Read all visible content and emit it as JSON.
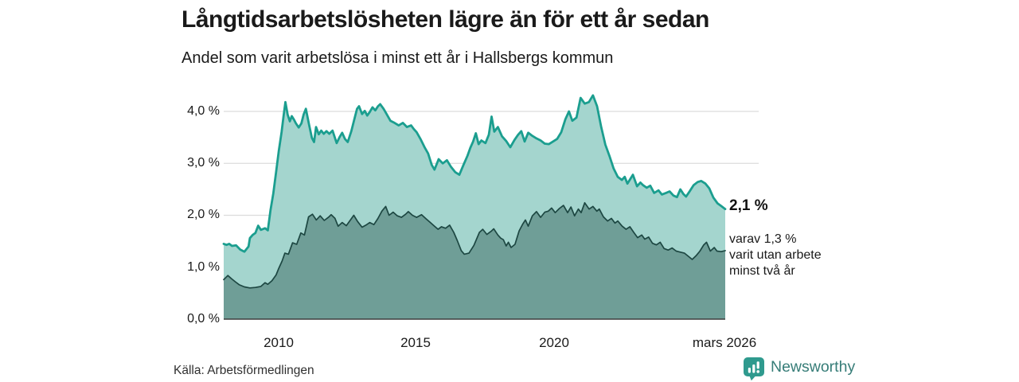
{
  "chart_data": {
    "type": "area",
    "title": "Långtidsarbetslösheten lägre än för ett år sedan",
    "subtitle": "Andel som varit arbetslösa i minst ett år i Hallsbergs kommun",
    "x_domain": [
      2008,
      2026.2
    ],
    "ylim": [
      0,
      4.45
    ],
    "grid": true,
    "legend": false,
    "yticks": [
      0,
      1,
      2,
      3,
      4
    ],
    "ytick_labels": [
      "0,0 %",
      "1,0 %",
      "2,0 %",
      "3,0 %",
      "4,0 %"
    ],
    "xticks": [
      2010,
      2015,
      2020,
      2026.2
    ],
    "xtick_labels": [
      "2010",
      "2015",
      "2020",
      "mars 2026"
    ],
    "colors": {
      "grid": "#dcdcdc",
      "axis": "#3d3d3d"
    },
    "series": [
      {
        "id": "unemployed-at-least-one-year",
        "line_color": "#1b9e8f",
        "fill_color": "#a4d5ce",
        "line_width": 2.8,
        "x": [
          2008.0,
          2008.1,
          2008.2,
          2008.3,
          2008.45,
          2008.6,
          2008.75,
          2008.9,
          2008.95,
          2009.05,
          2009.15,
          2009.25,
          2009.35,
          2009.5,
          2009.6,
          2009.7,
          2009.8,
          2009.9,
          2010.0,
          2010.1,
          2010.17,
          2010.24,
          2010.32,
          2010.4,
          2010.47,
          2010.55,
          2010.62,
          2010.72,
          2010.82,
          2010.9,
          2010.98,
          2011.1,
          2011.2,
          2011.28,
          2011.35,
          2011.45,
          2011.54,
          2011.63,
          2011.73,
          2011.83,
          2011.95,
          2012.1,
          2012.2,
          2012.3,
          2012.4,
          2012.5,
          2012.63,
          2012.77,
          2012.84,
          2012.91,
          2013.02,
          2013.12,
          2013.21,
          2013.3,
          2013.4,
          2013.5,
          2013.6,
          2013.68,
          2013.8,
          2013.9,
          2014.05,
          2014.2,
          2014.35,
          2014.5,
          2014.65,
          2014.8,
          2014.9,
          2015.0,
          2015.15,
          2015.3,
          2015.42,
          2015.55,
          2015.65,
          2015.8,
          2015.95,
          2016.1,
          2016.25,
          2016.4,
          2016.55,
          2016.7,
          2016.85,
          2016.95,
          2017.05,
          2017.15,
          2017.25,
          2017.35,
          2017.5,
          2017.62,
          2017.72,
          2017.82,
          2017.95,
          2018.1,
          2018.25,
          2018.4,
          2018.55,
          2018.68,
          2018.8,
          2018.92,
          2019.05,
          2019.2,
          2019.35,
          2019.5,
          2019.65,
          2019.8,
          2019.95,
          2020.1,
          2020.25,
          2020.4,
          2020.53,
          2020.65,
          2020.8,
          2020.95,
          2021.1,
          2021.25,
          2021.4,
          2021.55,
          2021.7,
          2021.85,
          2022.0,
          2022.15,
          2022.3,
          2022.45,
          2022.55,
          2022.65,
          2022.85,
          2023.0,
          2023.12,
          2023.22,
          2023.35,
          2023.48,
          2023.62,
          2023.78,
          2023.9,
          2024.05,
          2024.18,
          2024.32,
          2024.45,
          2024.57,
          2024.68,
          2024.78,
          2024.92,
          2025.05,
          2025.2,
          2025.33,
          2025.48,
          2025.62,
          2025.77,
          2025.92,
          2026.05,
          2026.2
        ],
        "y": [
          1.45,
          1.43,
          1.45,
          1.41,
          1.42,
          1.34,
          1.3,
          1.4,
          1.56,
          1.62,
          1.66,
          1.8,
          1.72,
          1.75,
          1.71,
          2.1,
          2.42,
          2.83,
          3.24,
          3.6,
          3.9,
          4.18,
          3.94,
          3.81,
          3.91,
          3.84,
          3.77,
          3.69,
          3.77,
          3.94,
          4.05,
          3.74,
          3.49,
          3.41,
          3.7,
          3.56,
          3.63,
          3.57,
          3.62,
          3.57,
          3.63,
          3.39,
          3.5,
          3.59,
          3.47,
          3.41,
          3.62,
          3.91,
          4.05,
          4.1,
          3.95,
          4.01,
          3.92,
          3.99,
          4.08,
          4.02,
          4.1,
          4.14,
          4.05,
          3.96,
          3.82,
          3.78,
          3.73,
          3.78,
          3.7,
          3.73,
          3.66,
          3.6,
          3.46,
          3.3,
          3.19,
          2.97,
          2.88,
          3.08,
          3.0,
          3.06,
          2.93,
          2.83,
          2.78,
          2.97,
          3.15,
          3.3,
          3.42,
          3.58,
          3.37,
          3.44,
          3.39,
          3.55,
          3.9,
          3.61,
          3.7,
          3.52,
          3.43,
          3.31,
          3.45,
          3.55,
          3.62,
          3.42,
          3.59,
          3.53,
          3.48,
          3.44,
          3.38,
          3.37,
          3.42,
          3.47,
          3.6,
          3.85,
          4.0,
          3.82,
          3.88,
          4.26,
          4.15,
          4.18,
          4.31,
          4.1,
          3.7,
          3.36,
          3.14,
          2.9,
          2.74,
          2.68,
          2.74,
          2.61,
          2.78,
          2.56,
          2.63,
          2.58,
          2.53,
          2.57,
          2.43,
          2.48,
          2.4,
          2.43,
          2.46,
          2.38,
          2.35,
          2.5,
          2.41,
          2.36,
          2.47,
          2.58,
          2.64,
          2.66,
          2.61,
          2.52,
          2.34,
          2.23,
          2.18,
          2.12
        ]
      },
      {
        "id": "unemployed-at-least-two-years",
        "line_color": "#1d4742",
        "fill_color": "#6f9e97",
        "line_width": 1.7,
        "x": [
          2008.0,
          2008.15,
          2008.28,
          2008.42,
          2008.57,
          2008.75,
          2008.95,
          2009.15,
          2009.35,
          2009.5,
          2009.6,
          2009.75,
          2009.9,
          2010.0,
          2010.12,
          2010.22,
          2010.35,
          2010.5,
          2010.65,
          2010.8,
          2010.93,
          2011.08,
          2011.22,
          2011.36,
          2011.5,
          2011.65,
          2011.8,
          2011.9,
          2012.04,
          2012.15,
          2012.3,
          2012.45,
          2012.6,
          2012.72,
          2012.86,
          2013.02,
          2013.16,
          2013.3,
          2013.45,
          2013.6,
          2013.74,
          2013.88,
          2014.0,
          2014.15,
          2014.3,
          2014.45,
          2014.6,
          2014.7,
          2014.85,
          2015.0,
          2015.18,
          2015.35,
          2015.5,
          2015.65,
          2015.78,
          2015.9,
          2016.05,
          2016.2,
          2016.35,
          2016.48,
          2016.62,
          2016.73,
          2016.9,
          2017.08,
          2017.28,
          2017.4,
          2017.55,
          2017.7,
          2017.8,
          2017.95,
          2018.05,
          2018.15,
          2018.25,
          2018.33,
          2018.43,
          2018.57,
          2018.72,
          2018.85,
          2018.95,
          2019.05,
          2019.2,
          2019.35,
          2019.5,
          2019.65,
          2019.78,
          2019.9,
          2020.03,
          2020.18,
          2020.33,
          2020.48,
          2020.6,
          2020.73,
          2020.87,
          2020.97,
          2021.1,
          2021.26,
          2021.4,
          2021.54,
          2021.63,
          2021.78,
          2021.93,
          2022.07,
          2022.2,
          2022.3,
          2022.46,
          2022.6,
          2022.74,
          2022.88,
          2023.02,
          2023.17,
          2023.28,
          2023.42,
          2023.56,
          2023.7,
          2023.84,
          2023.98,
          2024.13,
          2024.27,
          2024.42,
          2024.57,
          2024.72,
          2024.86,
          2025.0,
          2025.14,
          2025.28,
          2025.42,
          2025.52,
          2025.66,
          2025.8,
          2025.9,
          2026.05,
          2026.2
        ],
        "y": [
          0.76,
          0.84,
          0.78,
          0.72,
          0.66,
          0.62,
          0.6,
          0.61,
          0.63,
          0.7,
          0.67,
          0.74,
          0.85,
          0.98,
          1.12,
          1.27,
          1.25,
          1.47,
          1.44,
          1.66,
          1.62,
          1.97,
          2.02,
          1.91,
          1.99,
          1.9,
          1.96,
          2.01,
          1.94,
          1.79,
          1.86,
          1.8,
          1.91,
          2.0,
          1.88,
          1.77,
          1.81,
          1.86,
          1.82,
          1.94,
          2.08,
          2.17,
          2.0,
          2.06,
          1.99,
          1.96,
          2.02,
          2.07,
          2.0,
          1.96,
          2.01,
          1.93,
          1.86,
          1.79,
          1.73,
          1.78,
          1.75,
          1.81,
          1.67,
          1.51,
          1.32,
          1.25,
          1.27,
          1.42,
          1.67,
          1.73,
          1.63,
          1.69,
          1.74,
          1.62,
          1.56,
          1.53,
          1.41,
          1.48,
          1.38,
          1.44,
          1.7,
          1.83,
          1.91,
          1.79,
          1.99,
          2.07,
          1.96,
          2.06,
          2.08,
          2.14,
          2.05,
          2.13,
          2.19,
          2.05,
          2.16,
          1.99,
          2.12,
          2.05,
          2.24,
          2.12,
          2.17,
          2.08,
          2.12,
          1.97,
          1.89,
          1.94,
          1.85,
          1.89,
          1.79,
          1.73,
          1.78,
          1.67,
          1.57,
          1.62,
          1.54,
          1.58,
          1.46,
          1.43,
          1.48,
          1.36,
          1.33,
          1.37,
          1.31,
          1.29,
          1.27,
          1.21,
          1.15,
          1.22,
          1.31,
          1.43,
          1.48,
          1.31,
          1.38,
          1.31,
          1.3,
          1.32
        ]
      }
    ],
    "annotation": {
      "end_value": "2,1 %",
      "detail_lines": [
        "varav 1,3 %",
        "varit utan arbete",
        "minst två år"
      ]
    },
    "source": "Källa: Arbetsförmedlingen"
  },
  "branding": {
    "logo_text": "Newsworthy",
    "icon_color": "#2f9a8e",
    "text_color": "#377d78"
  }
}
